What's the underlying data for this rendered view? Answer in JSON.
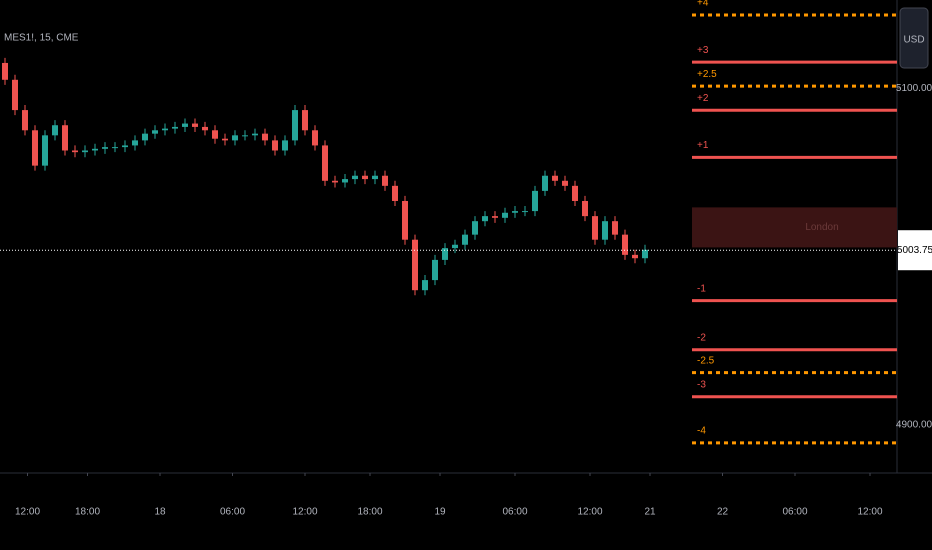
{
  "chart_data": {
    "type": "candlestick",
    "title": "MES1!, 15, CME",
    "currency": "USD",
    "xlim": [
      0,
      358.8
    ],
    "ylim": [
      4871.4,
      5152.4
    ],
    "yticks": [
      {
        "value": 5100,
        "label": "5100.00"
      },
      {
        "value": 4900,
        "label": "4900.00"
      }
    ],
    "xticks": [
      {
        "value": 11,
        "label": "12:00"
      },
      {
        "value": 35,
        "label": "18:00"
      },
      {
        "value": 64,
        "label": "18"
      },
      {
        "value": 93,
        "label": "06:00"
      },
      {
        "value": 122,
        "label": "12:00"
      },
      {
        "value": 148,
        "label": "18:00"
      },
      {
        "value": 176,
        "label": "19"
      },
      {
        "value": 206,
        "label": "06:00"
      },
      {
        "value": 236,
        "label": "12:00"
      },
      {
        "value": 260,
        "label": "21"
      },
      {
        "value": 289,
        "label": "22"
      },
      {
        "value": 318,
        "label": "06:00"
      },
      {
        "value": 348,
        "label": "12:00"
      }
    ],
    "last_price": {
      "value": 5003.75,
      "label": "5003.75"
    },
    "up_color": "#26a69a",
    "down_color": "#ef5350",
    "x": [
      2,
      6,
      10,
      14,
      18,
      22,
      26,
      30,
      34,
      38,
      42,
      46,
      50,
      54,
      58,
      62,
      66,
      70,
      74,
      78,
      82,
      86,
      90,
      94,
      98,
      102,
      106,
      110,
      114,
      118,
      122,
      126,
      130,
      134,
      138,
      142,
      146,
      150,
      154,
      158,
      162,
      166,
      170,
      174,
      178,
      182,
      186,
      190,
      194,
      198,
      202,
      206,
      210,
      214,
      218,
      222,
      226,
      230,
      234,
      238,
      242,
      246,
      250,
      254,
      258
    ],
    "open": [
      5115,
      5105,
      5087,
      5075,
      5054,
      5072,
      5078,
      5063,
      5062,
      5063,
      5064,
      5065,
      5065,
      5066,
      5069,
      5073,
      5075,
      5076,
      5077,
      5079,
      5077,
      5075,
      5070,
      5069,
      5072,
      5072,
      5073,
      5069,
      5063,
      5069,
      5087,
      5075,
      5066,
      5045,
      5044,
      5046,
      5048,
      5046,
      5048,
      5042,
      5033,
      5010,
      4980,
      4986,
      4998,
      5005,
      5007,
      5013,
      5021,
      5024,
      5023,
      5026,
      5027,
      5027,
      5039,
      5048,
      5045,
      5042,
      5033,
      5024,
      5010,
      5021,
      5013,
      5001,
      4999
    ],
    "high": [
      5118,
      5108,
      5090,
      5078,
      5075,
      5081,
      5081,
      5066,
      5066,
      5067,
      5068,
      5068,
      5069,
      5072,
      5076,
      5078,
      5079,
      5080,
      5082,
      5082,
      5080,
      5078,
      5073,
      5075,
      5075,
      5076,
      5076,
      5072,
      5072,
      5090,
      5090,
      5078,
      5069,
      5048,
      5049,
      5051,
      5051,
      5051,
      5051,
      5045,
      5036,
      5013,
      4989,
      5001,
      5008,
      5010,
      5016,
      5024,
      5027,
      5027,
      5029,
      5030,
      5030,
      5042,
      5051,
      5051,
      5048,
      5045,
      5036,
      5027,
      5024,
      5024,
      5016,
      5004,
      5007
    ],
    "low": [
      5102,
      5084,
      5072,
      5051,
      5051,
      5069,
      5060,
      5059,
      5059,
      5060,
      5061,
      5062,
      5062,
      5063,
      5066,
      5070,
      5072,
      5073,
      5074,
      5074,
      5072,
      5067,
      5066,
      5066,
      5069,
      5069,
      5066,
      5060,
      5060,
      5066,
      5072,
      5063,
      5042,
      5041,
      5041,
      5043,
      5043,
      5043,
      5039,
      5030,
      5007,
      4977,
      4977,
      4983,
      4995,
      5002,
      5004,
      5010,
      5018,
      5020,
      5020,
      5023,
      5024,
      5024,
      5036,
      5042,
      5039,
      5030,
      5021,
      5007,
      5007,
      5010,
      4998,
      4996,
      4996
    ],
    "close": [
      5105,
      5087,
      5075,
      5054,
      5072,
      5078,
      5063,
      5062,
      5063,
      5064,
      5065,
      5065,
      5066,
      5069,
      5073,
      5075,
      5076,
      5077,
      5079,
      5077,
      5075,
      5070,
      5069,
      5072,
      5072,
      5073,
      5069,
      5063,
      5069,
      5087,
      5075,
      5066,
      5045,
      5044,
      5046,
      5048,
      5046,
      5048,
      5042,
      5033,
      5010,
      4980,
      4986,
      4998,
      5005,
      5007,
      5013,
      5021,
      5024,
      5023,
      5026,
      5027,
      5027,
      5039,
      5048,
      5045,
      5042,
      5033,
      5024,
      5010,
      5021,
      5013,
      5001,
      4999,
      5004
    ],
    "zone": {
      "label": "London",
      "top": 5029.2,
      "bottom": 5005.4,
      "color": "#3b1414"
    },
    "levels": [
      {
        "label": "+4",
        "value": 5143.5,
        "style": "dotted",
        "color": "#ff9800"
      },
      {
        "label": "+3",
        "value": 5115.5,
        "style": "solid",
        "color": "#ef5350"
      },
      {
        "label": "+2.5",
        "value": 5101.2,
        "style": "dotted",
        "color": "#ff9800"
      },
      {
        "label": "+2",
        "value": 5086.9,
        "style": "solid",
        "color": "#ef5350"
      },
      {
        "label": "+1",
        "value": 5058.9,
        "style": "solid",
        "color": "#ef5350"
      },
      {
        "label": "-1",
        "value": 4973.8,
        "style": "solid",
        "color": "#ef5350"
      },
      {
        "label": "-2",
        "value": 4944.6,
        "style": "solid",
        "color": "#ef5350"
      },
      {
        "label": "-2.5",
        "value": 4931,
        "style": "dotted",
        "color": "#ff9800"
      },
      {
        "label": "-3",
        "value": 4916.7,
        "style": "solid",
        "color": "#ef5350"
      },
      {
        "label": "-4",
        "value": 4889.3,
        "style": "dotted",
        "color": "#ff9800"
      }
    ]
  }
}
